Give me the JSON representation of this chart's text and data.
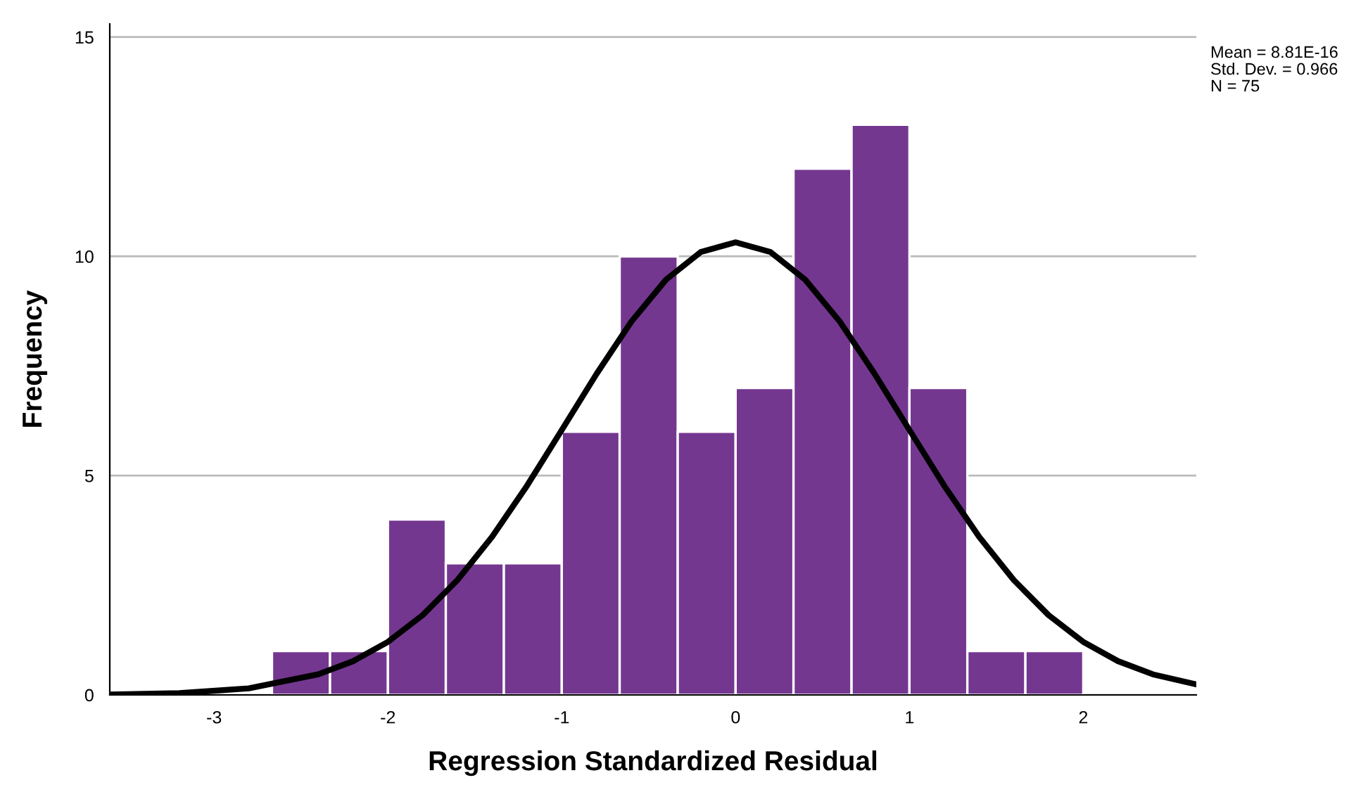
{
  "chart_data": {
    "type": "histogram",
    "xlabel": "Regression Standardized Residual",
    "ylabel": "Frequency",
    "bins": [
      -2.667,
      -2.333,
      -2,
      -1.667,
      -1.333,
      -1,
      -0.667,
      -0.333,
      0,
      0.333,
      0.667,
      1,
      1.333,
      1.667,
      2
    ],
    "values": [
      1,
      1,
      4,
      3,
      3,
      6,
      10,
      6,
      7,
      12,
      13,
      7,
      1,
      1
    ],
    "color": "#743790",
    "series": [
      {
        "type": "line",
        "color": "#000000",
        "x": [
          -3.6,
          -3.2,
          -2.8,
          -2.4,
          -2.2,
          -2.0,
          -1.8,
          -1.6,
          -1.4,
          -1.2,
          -1.0,
          -0.8,
          -0.6,
          -0.4,
          -0.2,
          0,
          0.2,
          0.4,
          0.6,
          0.8,
          1.0,
          1.2,
          1.4,
          1.6,
          1.8,
          2.0,
          2.2,
          2.4,
          2.65
        ],
        "values": [
          0.01,
          0.04,
          0.15,
          0.47,
          0.77,
          1.21,
          1.82,
          2.62,
          3.61,
          4.77,
          6.04,
          7.32,
          8.51,
          9.47,
          10.1,
          10.32,
          10.1,
          9.47,
          8.51,
          7.32,
          6.04,
          4.77,
          3.61,
          2.62,
          1.82,
          1.21,
          0.77,
          0.47,
          0.24
        ]
      }
    ],
    "xlim": [
      -3.6,
      2.65
    ],
    "xticks": [
      -3,
      -2,
      -1,
      0,
      1,
      2
    ],
    "ylim": [
      0,
      15.3
    ],
    "yticks": [
      0,
      5,
      10,
      15
    ],
    "grid": "y",
    "legend": false,
    "annotations": [
      "Mean = 8.81E-16",
      "Std. Dev. = 0.966",
      "N = 75"
    ]
  }
}
